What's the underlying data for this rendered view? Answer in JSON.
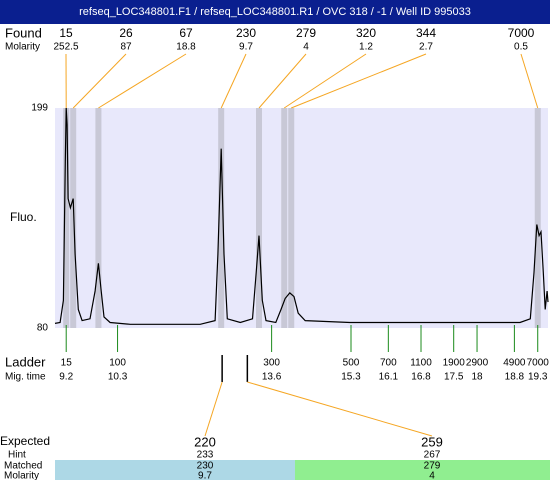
{
  "title": "refseq_LOC348801.F1 / refseq_LOC348801.R1 / OVC 318 / -1 / Well ID 995033",
  "chart_data": {
    "type": "electropherogram",
    "ylabel": "Fluo.",
    "ylim": [
      80,
      199
    ],
    "yticks": [
      199,
      80
    ],
    "xlim": [
      8.96,
      19.52
    ],
    "found": {
      "label": "Found",
      "molarity_label": "Molarity",
      "sizes": [
        15,
        26,
        67,
        230,
        279,
        320,
        344,
        7000
      ],
      "molarity": [
        252.5,
        87,
        18.8,
        9.7,
        4,
        1.2,
        2.7,
        0.5
      ],
      "x": [
        9.2,
        9.35,
        9.89,
        12.52,
        13.33,
        13.87,
        14.02,
        19.3
      ]
    },
    "ladder": {
      "label": "Ladder",
      "time_label": "Mig. time",
      "sizes": [
        15,
        100,
        300,
        500,
        700,
        1100,
        1900,
        2900,
        4900,
        7000
      ],
      "times": [
        9.2,
        10.3,
        13.6,
        15.3,
        16.1,
        16.8,
        17.5,
        18,
        18.8,
        19.3
      ]
    },
    "trace": {
      "x": [
        8.96,
        9.07,
        9.14,
        9.18,
        9.2,
        9.22,
        9.24,
        9.29,
        9.35,
        9.39,
        9.46,
        9.54,
        9.71,
        9.82,
        9.89,
        9.95,
        10.01,
        10.14,
        10.57,
        12.07,
        12.39,
        12.45,
        12.52,
        12.58,
        12.65,
        12.93,
        13.19,
        13.27,
        13.33,
        13.4,
        13.48,
        13.69,
        13.8,
        13.89,
        13.99,
        14.08,
        14.17,
        14.32,
        15.28,
        17.42,
        18.92,
        19.14,
        19.22,
        19.28,
        19.33,
        19.37,
        19.42,
        19.46,
        19.5,
        19.52
      ],
      "values": [
        82.5,
        83,
        95,
        170,
        199,
        190,
        150,
        145,
        150,
        120,
        90,
        84,
        85,
        100,
        115,
        100,
        86,
        83,
        82,
        82,
        84,
        120,
        177,
        120,
        85,
        83,
        85,
        110,
        130,
        95,
        84,
        83,
        90,
        96,
        99,
        97,
        88,
        84,
        83,
        83,
        83,
        85,
        110,
        136,
        130,
        132,
        110,
        90,
        100,
        94
      ]
    },
    "expected": {
      "label": "Expected",
      "hint_label": "Hint",
      "matched_label": "Matched",
      "molarity_label": "Molarity",
      "sizes": [
        220,
        259
      ],
      "hint": [
        233,
        267
      ],
      "matched": [
        230,
        279
      ],
      "molarity": [
        9.7,
        4
      ],
      "x": [
        12.54,
        13.08
      ]
    }
  }
}
